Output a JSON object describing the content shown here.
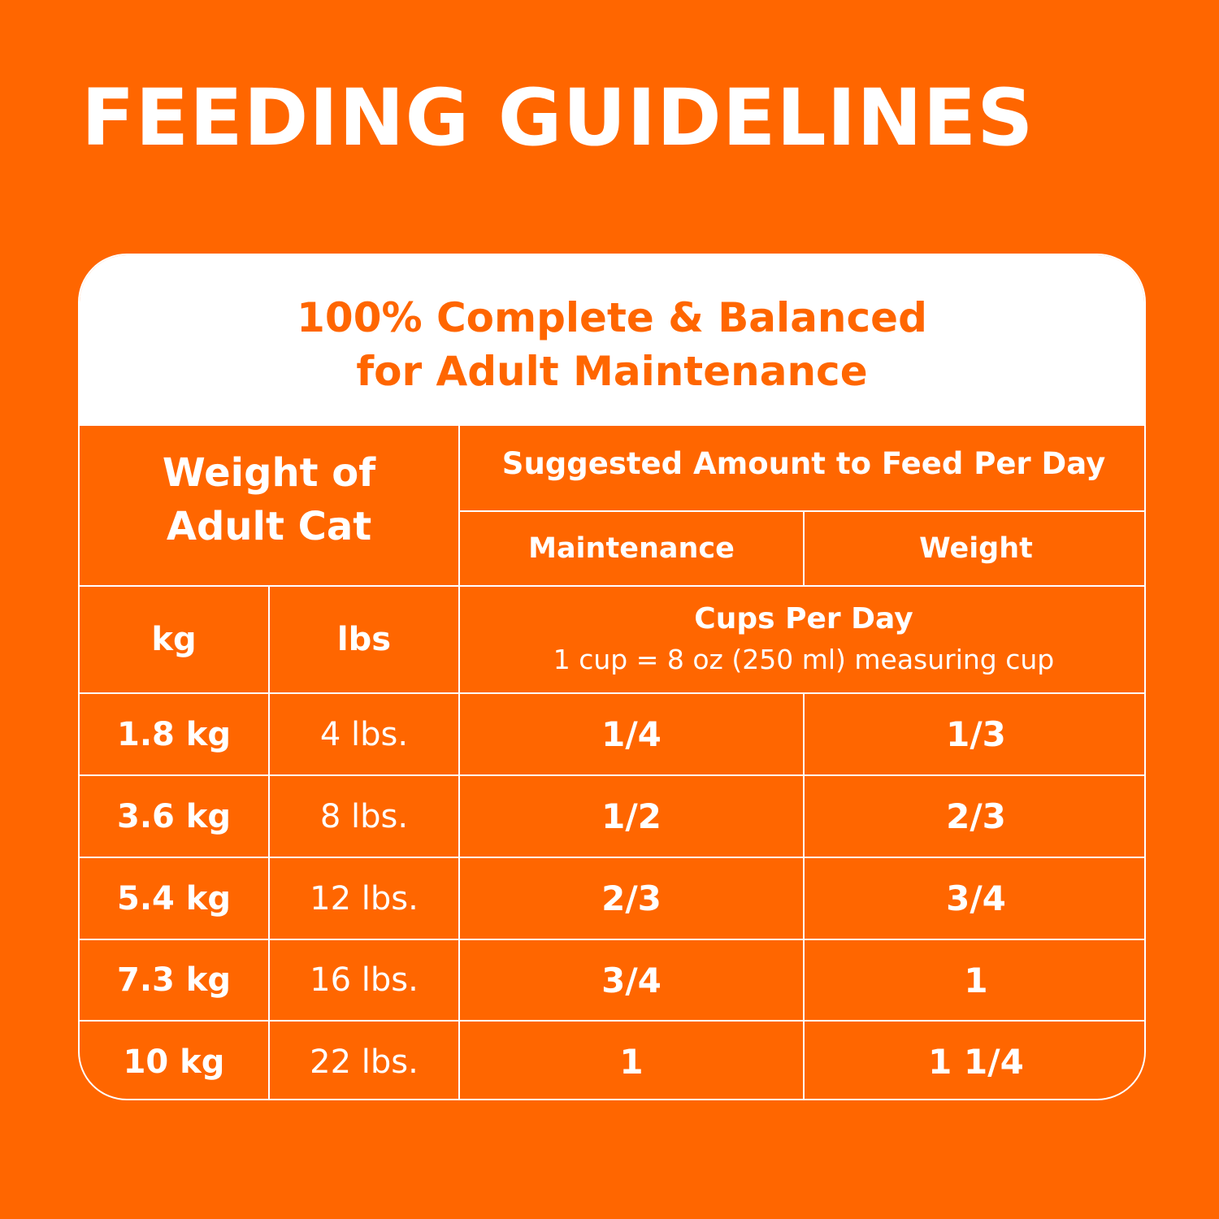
{
  "title": "FEEDING GUIDELINES",
  "card": {
    "heading_line1": "100% Complete & Balanced",
    "heading_line2": "for Adult Maintenance"
  },
  "table": {
    "weight_header_line1": "Weight of",
    "weight_header_line2": "Adult Cat",
    "amount_header": "Suggested Amount to Feed Per Day",
    "maintenance_header": "Maintenance",
    "weight_loss_header": "Weight",
    "kg_header": "kg",
    "lbs_header": "lbs",
    "cups_header": "Cups Per Day",
    "cups_note": "1 cup = 8 oz (250 ml) measuring cup",
    "rows": [
      {
        "kg": "1.8 kg",
        "lbs": "4 lbs.",
        "maintenance": "1/4",
        "weight": "1/3"
      },
      {
        "kg": "3.6 kg",
        "lbs": "8 lbs.",
        "maintenance": "1/2",
        "weight": "2/3"
      },
      {
        "kg": "5.4 kg",
        "lbs": "12 lbs.",
        "maintenance": "2/3",
        "weight": "3/4"
      },
      {
        "kg": "7.3 kg",
        "lbs": "16 lbs.",
        "maintenance": "3/4",
        "weight": "1"
      },
      {
        "kg": "10 kg",
        "lbs": "22 lbs.",
        "maintenance": "1",
        "weight": "1 1/4"
      }
    ]
  },
  "colors": {
    "background": "#ff6600",
    "header_panel": "#ffffff",
    "text": "#ffffff",
    "accent_text": "#ff6600"
  }
}
